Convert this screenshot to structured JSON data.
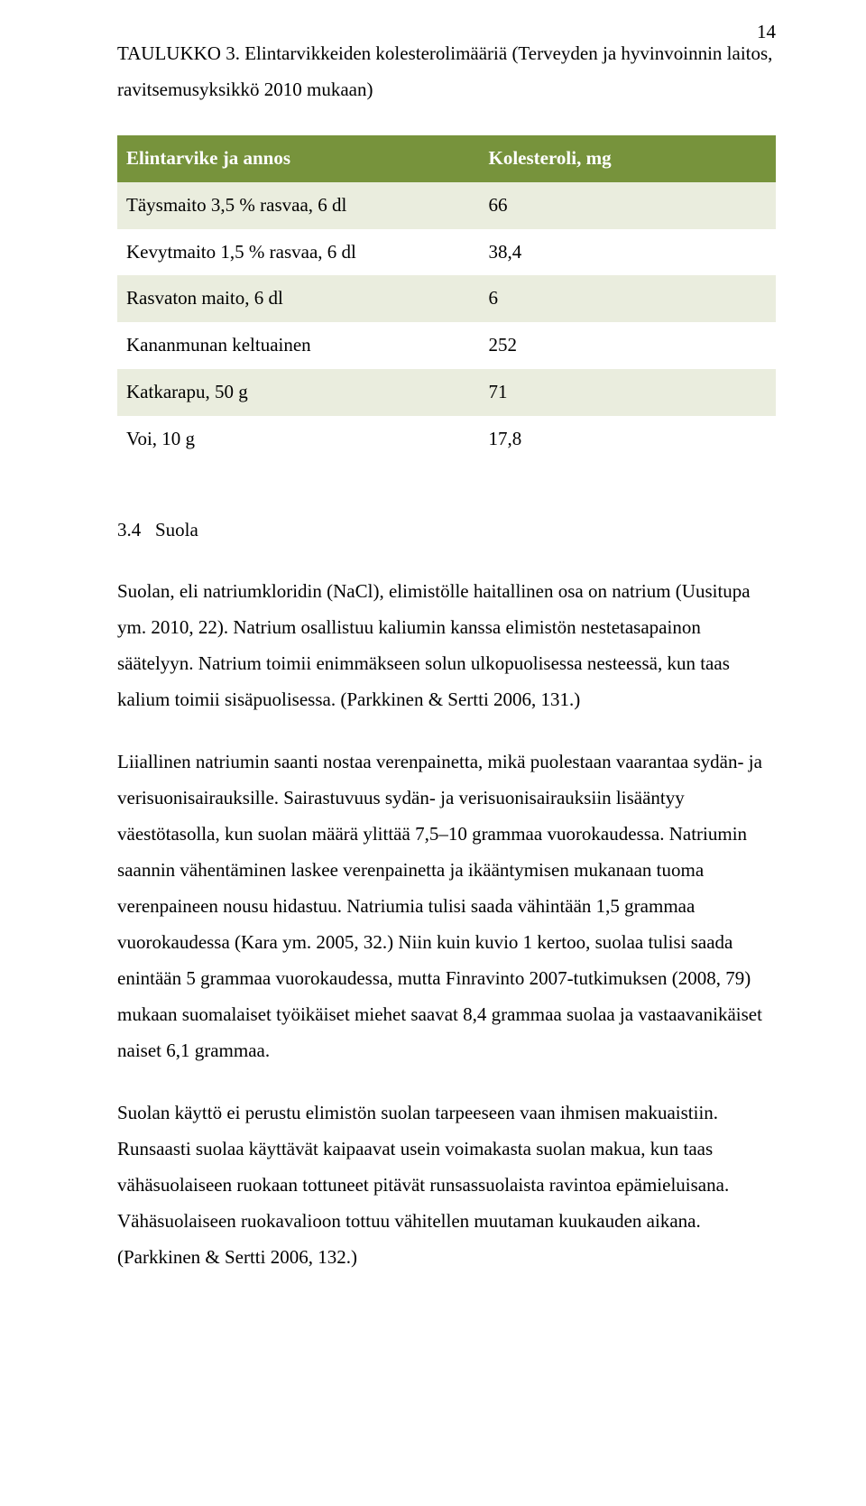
{
  "page_number": "14",
  "caption": "TAULUKKO 3. Elintarvikkeiden kolesterolimääriä (Terveyden ja hyvinvoinnin laitos, ravitsemusyksikkö 2010 mukaan)",
  "table": {
    "header": {
      "col1": "Elintarvike ja annos",
      "col2": "Kolesteroli, mg"
    },
    "rows": [
      {
        "label": "Täysmaito 3,5 % rasvaa, 6 dl",
        "value": "66"
      },
      {
        "label": "Kevytmaito 1,5 % rasvaa, 6 dl",
        "value": "38,4"
      },
      {
        "label": "Rasvaton maito, 6 dl",
        "value": "6"
      },
      {
        "label": "Kananmunan keltuainen",
        "value": "252"
      },
      {
        "label": "Katkarapu, 50 g",
        "value": "71"
      },
      {
        "label": "Voi, 10 g",
        "value": "17,8"
      }
    ],
    "header_bg": "#77933c",
    "header_fg": "#ffffff",
    "row_light_bg": "#eaedde",
    "row_white_bg": "#ffffff"
  },
  "section": {
    "number": "3.4",
    "title": "Suola"
  },
  "paragraphs": {
    "p1": "Suolan, eli natriumkloridin (NaCl), elimistölle haitallinen osa on natrium (Uusitupa ym. 2010, 22). Natrium osallistuu kaliumin kanssa elimistön nestetasapainon säätelyyn. Natrium toimii enimmäkseen solun ulkopuolisessa nesteessä, kun taas kalium toimii sisäpuolisessa. (Parkkinen & Sertti 2006, 131.)",
    "p2": "Liiallinen natriumin saanti nostaa verenpainetta, mikä puolestaan vaarantaa sydän- ja verisuonisairauksille. Sairastuvuus sydän- ja verisuonisairauksiin lisääntyy väestötasolla, kun suolan määrä ylittää 7,5–10 grammaa vuorokaudessa. Natriumin saannin vähentäminen laskee verenpainetta ja ikääntymisen mukanaan tuoma verenpaineen nousu hidastuu. Natriumia tulisi saada vähintään 1,5 grammaa vuorokaudessa (Kara ym. 2005, 32.) Niin kuin kuvio 1 kertoo, suolaa tulisi saada enintään 5 grammaa vuorokaudessa, mutta Finravinto 2007-tutkimuksen (2008, 79) mukaan suomalaiset työikäiset miehet saavat 8,4 grammaa suolaa ja vastaavanikäiset naiset 6,1 grammaa.",
    "p3": "Suolan käyttö ei perustu elimistön suolan tarpeeseen vaan ihmisen makuaistiin. Runsaasti suolaa käyttävät kaipaavat usein voimakasta suolan makua, kun taas vähäsuolaiseen ruokaan tottuneet pitävät runsassuolaista ravintoa epämieluisana. Vähäsuolaiseen ruokavalioon tottuu vähitellen muutaman kuukauden aikana. (Parkkinen & Sertti 2006, 132.)"
  }
}
